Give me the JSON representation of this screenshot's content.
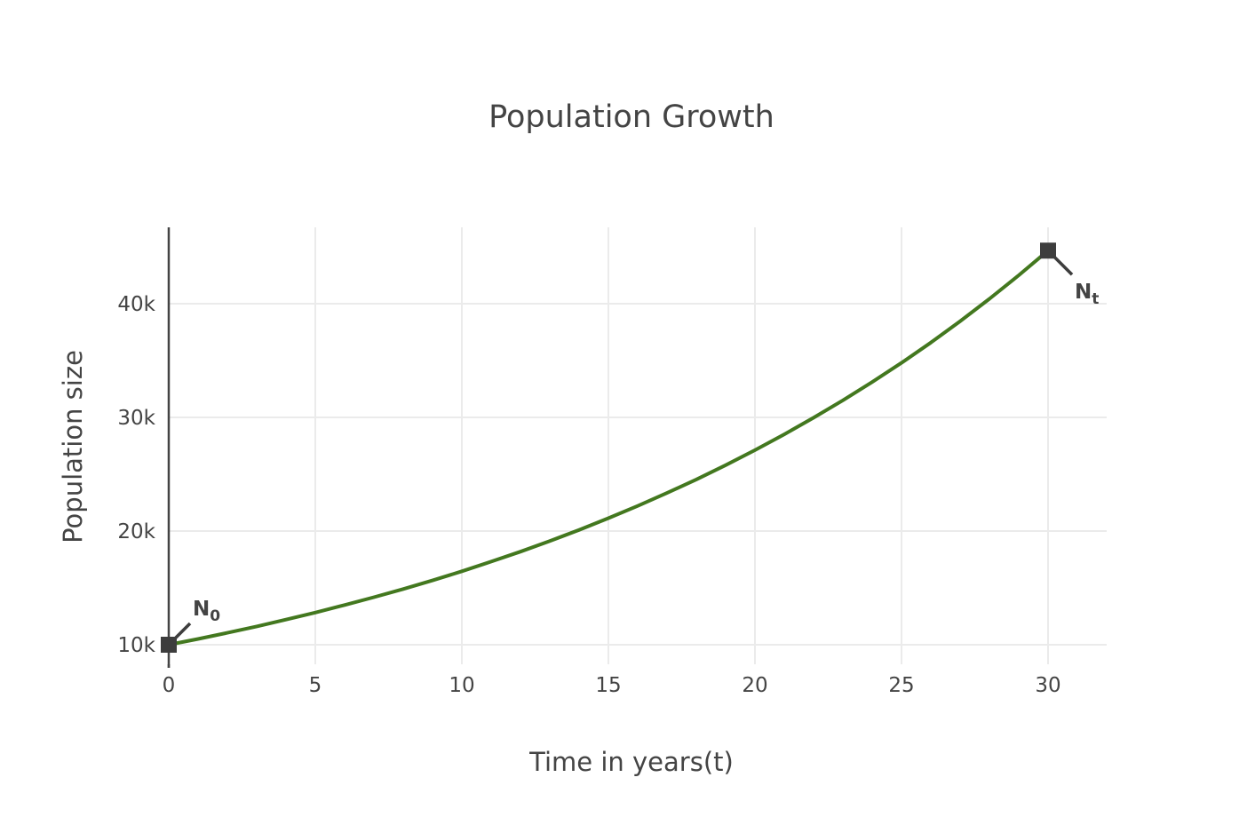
{
  "chart_data": {
    "type": "line",
    "title": "Population Growth",
    "xlabel": "Time in years(t)",
    "ylabel": "Population size",
    "xlim": [
      0,
      32
    ],
    "ylim": [
      8500,
      46500
    ],
    "x_ticks": [
      0,
      5,
      10,
      15,
      20,
      25,
      30
    ],
    "x_tick_labels": [
      "0",
      "5",
      "10",
      "15",
      "20",
      "25",
      "30"
    ],
    "y_ticks": [
      10000,
      20000,
      30000,
      40000
    ],
    "y_tick_labels": [
      "10k",
      "20k",
      "30k",
      "40k"
    ],
    "grid": true,
    "legend": false,
    "series": [
      {
        "color": "#43781f",
        "x": [
          0,
          1,
          2,
          3,
          4,
          5,
          6,
          7,
          8,
          9,
          10,
          11,
          12,
          13,
          14,
          15,
          16,
          17,
          18,
          19,
          20,
          21,
          22,
          23,
          24,
          25,
          26,
          27,
          28,
          29,
          30
        ],
        "y": [
          10000,
          10510,
          11050,
          11610,
          12210,
          12830,
          13490,
          14180,
          14900,
          15660,
          16460,
          17310,
          18190,
          19120,
          20100,
          21130,
          22210,
          23350,
          24540,
          25800,
          27120,
          28510,
          29970,
          31500,
          33110,
          34800,
          36580,
          38460,
          40430,
          42500,
          44670
        ]
      }
    ],
    "markers": [
      {
        "x": 0,
        "y": 10000,
        "color": "#3d3d3d"
      },
      {
        "x": 30,
        "y": 44670,
        "color": "#3d3d3d"
      }
    ],
    "annotations": [
      {
        "x": 0,
        "y": 10000,
        "label": "N",
        "subscript": "0",
        "position": "upper-right"
      },
      {
        "x": 30,
        "y": 44670,
        "label": "N",
        "subscript": "t",
        "position": "lower-right"
      }
    ]
  }
}
